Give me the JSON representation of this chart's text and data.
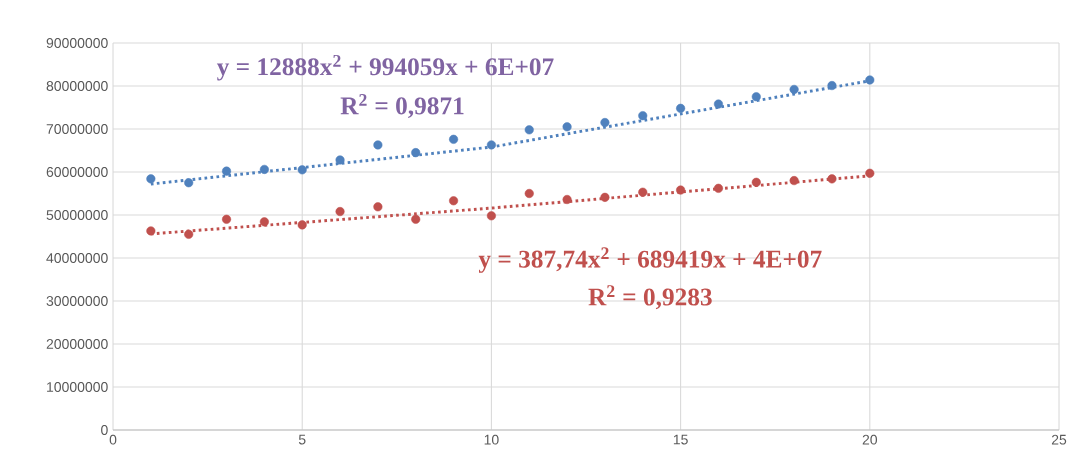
{
  "chart_data": {
    "type": "scatter",
    "x": [
      1,
      2,
      3,
      4,
      5,
      6,
      7,
      8,
      9,
      10,
      11,
      12,
      13,
      14,
      15,
      16,
      17,
      18,
      19,
      20
    ],
    "series": [
      {
        "color": "#4f81bd",
        "marker": "circle",
        "values": [
          58400000,
          57500000,
          60200000,
          60600000,
          60500000,
          62800000,
          66300000,
          64500000,
          67600000,
          66300000,
          69800000,
          70500000,
          71500000,
          73100000,
          74800000,
          75800000,
          77500000,
          79200000,
          80100000,
          81400000
        ]
      },
      {
        "color": "#c0504d",
        "marker": "circle",
        "values": [
          46300000,
          45500000,
          49000000,
          48400000,
          47700000,
          50800000,
          51900000,
          49000000,
          53300000,
          49800000,
          55000000,
          53600000,
          54100000,
          55300000,
          55800000,
          56200000,
          57600000,
          58000000,
          58400000,
          59700000
        ]
      },
      {
        "type": "line",
        "color": "#4f81bd",
        "marker": "none",
        "line_style": "dotted",
        "x": [
          1,
          10,
          20
        ],
        "values": [
          57200000,
          65800000,
          81200000
        ]
      },
      {
        "type": "line",
        "color": "#c0504d",
        "marker": "none",
        "line_style": "dotted",
        "x": [
          1,
          10,
          20
        ],
        "values": [
          45600000,
          51600000,
          59100000
        ]
      }
    ],
    "annotations": [
      "y = 12888x$^{2}$ + 994059x + 6E+07",
      "R$^{2}$ = 0,9871",
      "y = 387,74x$^{2}$ + 689419x + 4E+07",
      "R$^{2}$ = 0,9283"
    ],
    "xlim": [
      0,
      25
    ],
    "xticks": [
      0,
      5,
      10,
      15,
      20,
      25
    ],
    "ylim": [
      0,
      90000000
    ],
    "yticks": [
      0,
      10000000,
      20000000,
      30000000,
      40000000,
      50000000,
      60000000,
      70000000,
      80000000,
      90000000
    ],
    "grid": true
  }
}
